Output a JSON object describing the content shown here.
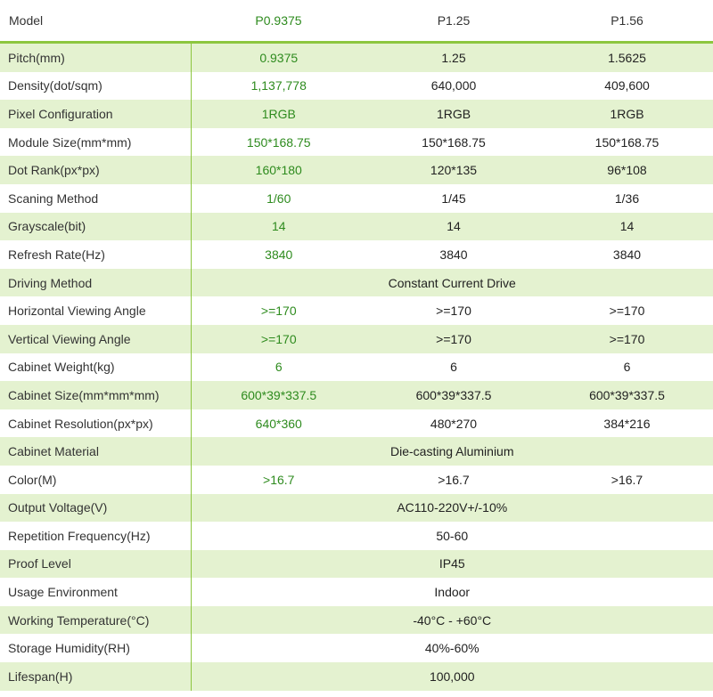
{
  "header": {
    "label": "Model",
    "models": [
      "P0.9375",
      "P1.25",
      "P1.56"
    ]
  },
  "rows": [
    {
      "label": "Pitch(mm)",
      "values": [
        "0.9375",
        "1.25",
        "1.5625"
      ]
    },
    {
      "label": "Density(dot/sqm)",
      "values": [
        "1,137,778",
        "640,000",
        "409,600"
      ]
    },
    {
      "label": "Pixel Configuration",
      "values": [
        "1RGB",
        "1RGB",
        "1RGB"
      ]
    },
    {
      "label": "Module Size(mm*mm)",
      "values": [
        "150*168.75",
        "150*168.75",
        "150*168.75"
      ]
    },
    {
      "label": "Dot Rank(px*px)",
      "values": [
        "160*180",
        "120*135",
        "96*108"
      ]
    },
    {
      "label": "Scaning Method",
      "values": [
        "1/60",
        "1/45",
        "1/36"
      ]
    },
    {
      "label": "Grayscale(bit)",
      "values": [
        "14",
        "14",
        "14"
      ]
    },
    {
      "label": "Refresh Rate(Hz)",
      "values": [
        "3840",
        "3840",
        "3840"
      ]
    },
    {
      "label": "Driving Method",
      "value": "Constant Current Drive"
    },
    {
      "label": "Horizontal Viewing Angle",
      "values": [
        ">=170",
        ">=170",
        ">=170"
      ]
    },
    {
      "label": "Vertical Viewing Angle",
      "values": [
        ">=170",
        ">=170",
        ">=170"
      ]
    },
    {
      "label": "Cabinet Weight(kg)",
      "values": [
        "6",
        "6",
        "6"
      ]
    },
    {
      "label": "Cabinet Size(mm*mm*mm)",
      "values": [
        "600*39*337.5",
        "600*39*337.5",
        "600*39*337.5"
      ]
    },
    {
      "label": "Cabinet Resolution(px*px)",
      "values": [
        "640*360",
        "480*270",
        "384*216"
      ]
    },
    {
      "label": "Cabinet Material",
      "value": "Die-casting Aluminium"
    },
    {
      "label": "Color(M)",
      "values": [
        ">16.7",
        ">16.7",
        ">16.7"
      ]
    },
    {
      "label": "Output Voltage(V)",
      "value": "AC110-220V+/-10%"
    },
    {
      "label": "Repetition Frequency(Hz)",
      "value": "50-60"
    },
    {
      "label": "Proof Level",
      "value": "IP45"
    },
    {
      "label": "Usage Environment",
      "value": "Indoor"
    },
    {
      "label": "Working Temperature(°C)",
      "value": "-40°C - +60°C"
    },
    {
      "label": "Storage Humidity(RH)",
      "value": "40%-60%"
    },
    {
      "label": "Lifespan(H)",
      "value": "100,000"
    }
  ],
  "colors": {
    "accent_green": "#8cc63f",
    "row_tint": "#e4f2d0",
    "highlight_text": "#2e8b1e"
  }
}
